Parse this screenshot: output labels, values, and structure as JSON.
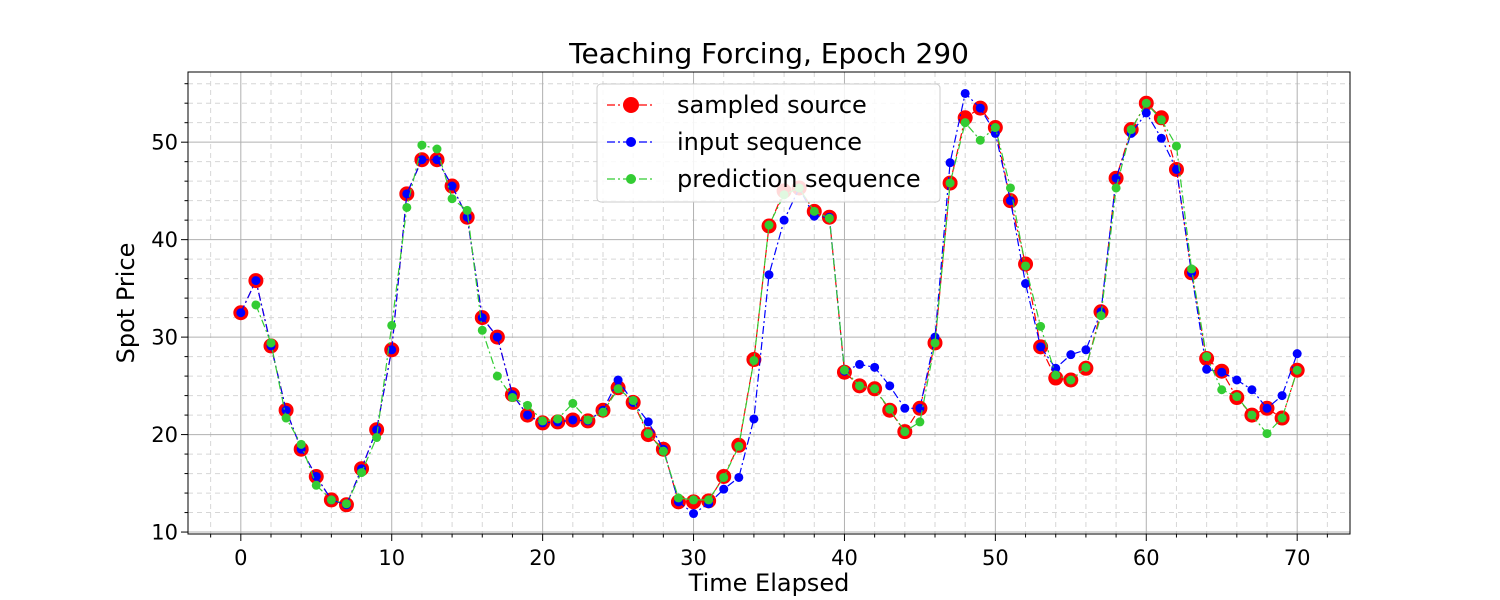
{
  "chart_data": {
    "type": "line",
    "title": "Teaching Forcing, Epoch 290",
    "xlabel": "Time Elapsed",
    "ylabel": "Spot Price",
    "xlim": [
      -3.5,
      73.5
    ],
    "ylim": [
      9.8,
      57.2
    ],
    "x_ticks": [
      0,
      10,
      20,
      30,
      40,
      50,
      60,
      70
    ],
    "y_ticks": [
      10,
      20,
      30,
      40,
      50
    ],
    "grid": "major solid, minor dashed",
    "legend_placement": "top-center",
    "series": [
      {
        "name": "sampled source",
        "color": "#ff0000",
        "marker": "large-circle",
        "linestyle": "dash-dot",
        "x": [
          0,
          1,
          2,
          3,
          4,
          5,
          6,
          7,
          8,
          9,
          10,
          11,
          12,
          13,
          14,
          15,
          16,
          17,
          18,
          19,
          20,
          21,
          22,
          23,
          24,
          25,
          26,
          27,
          28,
          29,
          30,
          31,
          32,
          33,
          34,
          35,
          36,
          37,
          38,
          39,
          40,
          41,
          42,
          43,
          44,
          45,
          46,
          47,
          48,
          49,
          50,
          51,
          52,
          53,
          54,
          55,
          56,
          57,
          58,
          59,
          60,
          61,
          62,
          63,
          64,
          65,
          66,
          67,
          68,
          69,
          70
        ],
        "y": [
          32.5,
          35.8,
          29.1,
          22.5,
          18.5,
          15.7,
          13.3,
          12.8,
          16.5,
          20.5,
          28.7,
          44.7,
          48.2,
          48.2,
          45.5,
          42.3,
          32.0,
          30.0,
          24.1,
          22.0,
          21.2,
          21.3,
          21.5,
          21.4,
          22.5,
          24.8,
          23.3,
          20.0,
          18.5,
          13.1,
          13.1,
          13.2,
          15.7,
          18.9,
          27.7,
          41.4,
          45.0,
          45.3,
          42.9,
          42.3,
          26.4,
          25.0,
          24.7,
          22.5,
          20.3,
          22.7,
          29.4,
          45.8,
          52.5,
          53.5,
          51.5,
          44.0,
          37.5,
          29.0,
          25.8,
          25.6,
          26.8,
          32.6,
          46.3,
          51.3,
          54.0,
          52.5,
          47.2,
          36.6,
          27.8,
          26.5,
          23.8,
          22.0,
          22.7,
          21.7,
          26.6
        ]
      },
      {
        "name": "input sequence",
        "color": "#0000ff",
        "marker": "circle",
        "linestyle": "dash-dot",
        "x": [
          0,
          1,
          2,
          3,
          4,
          5,
          6,
          7,
          8,
          9,
          10,
          11,
          12,
          13,
          14,
          15,
          16,
          17,
          18,
          19,
          20,
          21,
          22,
          23,
          24,
          25,
          26,
          27,
          28,
          29,
          30,
          31,
          32,
          33,
          34,
          35,
          36,
          37,
          38,
          39,
          40,
          41,
          42,
          43,
          44,
          45,
          46,
          47,
          48,
          49,
          50,
          51,
          52,
          53,
          54,
          55,
          56,
          57,
          58,
          59,
          60,
          61,
          62,
          63,
          64,
          65,
          66,
          67,
          68,
          69,
          70
        ],
        "y": [
          32.5,
          35.8,
          29.1,
          22.5,
          18.5,
          15.7,
          13.3,
          12.8,
          16.5,
          20.5,
          28.7,
          44.7,
          48.2,
          48.2,
          45.5,
          42.3,
          32.0,
          30.0,
          24.1,
          22.0,
          21.2,
          21.3,
          21.5,
          21.4,
          22.5,
          25.6,
          23.3,
          21.3,
          18.5,
          13.1,
          11.9,
          12.9,
          14.4,
          15.6,
          21.6,
          36.4,
          42.0,
          45.3,
          42.4,
          42.3,
          26.5,
          27.2,
          26.9,
          25.0,
          22.7,
          22.7,
          30.0,
          47.9,
          55.0,
          53.5,
          50.9,
          44.0,
          35.5,
          29.0,
          26.8,
          28.2,
          28.7,
          32.6,
          46.3,
          50.9,
          53.0,
          50.4,
          47.2,
          36.6,
          26.7,
          26.4,
          25.6,
          24.6,
          22.7,
          24.0,
          28.3
        ]
      },
      {
        "name": "prediction sequence",
        "color": "#33cc33",
        "marker": "circle",
        "linestyle": "dash-dot",
        "x": [
          1,
          2,
          3,
          4,
          5,
          6,
          7,
          8,
          9,
          10,
          11,
          12,
          13,
          14,
          15,
          16,
          17,
          18,
          19,
          20,
          21,
          22,
          23,
          24,
          25,
          26,
          27,
          28,
          29,
          30,
          31,
          32,
          33,
          34,
          35,
          36,
          37,
          38,
          39,
          40,
          41,
          42,
          43,
          44,
          45,
          46,
          47,
          48,
          49,
          50,
          51,
          52,
          53,
          54,
          55,
          56,
          57,
          58,
          59,
          60,
          61,
          62,
          63,
          64,
          65,
          66,
          67,
          68,
          69,
          70
        ],
        "y": [
          33.3,
          29.4,
          21.7,
          19.0,
          14.8,
          13.3,
          12.9,
          16.1,
          19.7,
          31.2,
          43.3,
          49.7,
          49.3,
          44.2,
          43.0,
          30.7,
          26.0,
          23.8,
          23.0,
          21.4,
          21.6,
          23.2,
          21.5,
          22.3,
          24.7,
          23.5,
          20.1,
          18.3,
          13.5,
          13.3,
          13.3,
          15.6,
          18.8,
          27.6,
          41.5,
          44.6,
          45.3,
          42.9,
          42.2,
          26.6,
          25.0,
          24.7,
          22.6,
          20.3,
          21.3,
          29.4,
          45.8,
          52.0,
          50.2,
          51.5,
          45.3,
          37.3,
          31.1,
          26.1,
          25.6,
          26.9,
          32.2,
          45.3,
          51.3,
          54.0,
          52.3,
          49.6,
          37.0,
          28.0,
          24.6,
          23.9,
          22.0,
          20.1,
          21.7,
          26.6
        ]
      }
    ]
  }
}
